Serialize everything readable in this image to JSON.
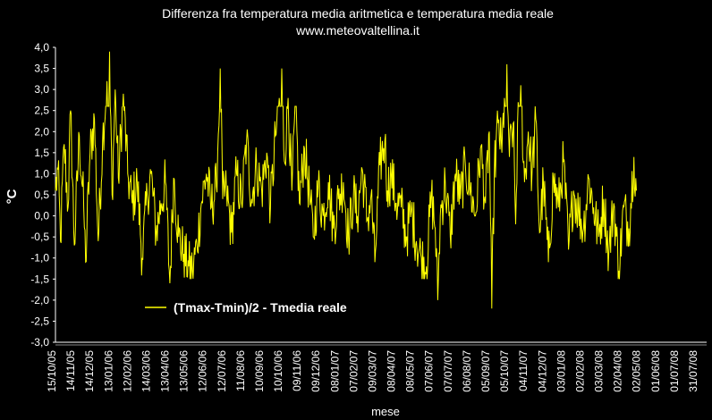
{
  "chart_data": {
    "type": "line",
    "title": "Differenza fra temperatura media aritmetica e temperatura media reale",
    "subtitle": "www.meteovaltellina.it",
    "xlabel": "mese",
    "ylabel": "°C",
    "ylim": [
      -3.0,
      4.0
    ],
    "yticks": [
      "4,0",
      "3,5",
      "3,0",
      "2,5",
      "2,0",
      "1,5",
      "1,0",
      "0,5",
      "0,0",
      "-0,5",
      "-1,0",
      "-1,5",
      "-2,0",
      "-2,5",
      "-3,0"
    ],
    "x_tick_labels": [
      "15/10/05",
      "14/11/05",
      "14/12/05",
      "13/01/06",
      "12/02/06",
      "14/03/06",
      "13/04/06",
      "13/05/06",
      "12/06/06",
      "12/07/06",
      "11/08/06",
      "10/09/06",
      "10/10/06",
      "09/11/06",
      "09/12/06",
      "08/01/07",
      "07/02/07",
      "09/03/07",
      "08/04/07",
      "08/05/07",
      "07/06/07",
      "07/07/07",
      "06/08/07",
      "05/09/07",
      "05/10/07",
      "04/11/07",
      "04/12/07",
      "03/01/08",
      "02/02/08",
      "03/03/08",
      "02/04/08",
      "02/05/08",
      "01/06/08",
      "01/07/08",
      "31/07/08"
    ],
    "grid": false,
    "legend_position": "lower-left",
    "line_color": "#ffff00",
    "series": [
      {
        "name": "(Tmax-Tmin)/2 - Tmedia reale",
        "color": "#ffff00",
        "anchors": [
          {
            "d": 0,
            "v": 0.6
          },
          {
            "d": 4,
            "v": 1.1
          },
          {
            "d": 8,
            "v": -0.6
          },
          {
            "d": 14,
            "v": 1.7
          },
          {
            "d": 20,
            "v": 0.2
          },
          {
            "d": 24,
            "v": 2.5
          },
          {
            "d": 30,
            "v": -0.7
          },
          {
            "d": 38,
            "v": 1.9
          },
          {
            "d": 45,
            "v": 0.2
          },
          {
            "d": 48,
            "v": -1.1
          },
          {
            "d": 55,
            "v": 1.5
          },
          {
            "d": 62,
            "v": 2.3
          },
          {
            "d": 68,
            "v": -0.6
          },
          {
            "d": 75,
            "v": 1.8
          },
          {
            "d": 82,
            "v": 3.2
          },
          {
            "d": 86,
            "v": 3.9
          },
          {
            "d": 90,
            "v": 0.5
          },
          {
            "d": 95,
            "v": 3.0
          },
          {
            "d": 100,
            "v": 0.9
          },
          {
            "d": 108,
            "v": 2.9
          },
          {
            "d": 115,
            "v": 1.0
          },
          {
            "d": 122,
            "v": 0.3
          },
          {
            "d": 130,
            "v": 0.8
          },
          {
            "d": 138,
            "v": -1.0
          },
          {
            "d": 146,
            "v": 0.5
          },
          {
            "d": 152,
            "v": 1.0
          },
          {
            "d": 160,
            "v": -0.4
          },
          {
            "d": 168,
            "v": 0.3
          },
          {
            "d": 175,
            "v": 0.8
          },
          {
            "d": 182,
            "v": -1.6
          },
          {
            "d": 188,
            "v": 0.9
          },
          {
            "d": 196,
            "v": -0.5
          },
          {
            "d": 204,
            "v": -0.9
          },
          {
            "d": 212,
            "v": -1.2
          },
          {
            "d": 218,
            "v": -1.3
          },
          {
            "d": 225,
            "v": -0.7
          },
          {
            "d": 232,
            "v": 0.3
          },
          {
            "d": 240,
            "v": 1.0
          },
          {
            "d": 248,
            "v": 0.2
          },
          {
            "d": 256,
            "v": 0.7
          },
          {
            "d": 262,
            "v": 3.5
          },
          {
            "d": 266,
            "v": 0.4
          },
          {
            "d": 272,
            "v": 0.6
          },
          {
            "d": 280,
            "v": -0.4
          },
          {
            "d": 288,
            "v": 1.0
          },
          {
            "d": 296,
            "v": 0.3
          },
          {
            "d": 304,
            "v": 1.8
          },
          {
            "d": 312,
            "v": 0.4
          },
          {
            "d": 320,
            "v": 1.2
          },
          {
            "d": 328,
            "v": 0.6
          },
          {
            "d": 336,
            "v": 1.5
          },
          {
            "d": 342,
            "v": 0.2
          },
          {
            "d": 350,
            "v": 1.9
          },
          {
            "d": 356,
            "v": 2.8
          },
          {
            "d": 360,
            "v": 3.5
          },
          {
            "d": 364,
            "v": 1.3
          },
          {
            "d": 370,
            "v": 2.8
          },
          {
            "d": 376,
            "v": 0.6
          },
          {
            "d": 382,
            "v": 2.6
          },
          {
            "d": 388,
            "v": 0.3
          },
          {
            "d": 396,
            "v": 1.6
          },
          {
            "d": 404,
            "v": 0.5
          },
          {
            "d": 410,
            "v": -0.5
          },
          {
            "d": 418,
            "v": 0.7
          },
          {
            "d": 426,
            "v": 0.0
          },
          {
            "d": 434,
            "v": 0.8
          },
          {
            "d": 442,
            "v": -0.3
          },
          {
            "d": 450,
            "v": 0.4
          },
          {
            "d": 458,
            "v": 0.8
          },
          {
            "d": 466,
            "v": -0.5
          },
          {
            "d": 474,
            "v": 0.5
          },
          {
            "d": 480,
            "v": 0.0
          },
          {
            "d": 488,
            "v": 1.1
          },
          {
            "d": 496,
            "v": -0.1
          },
          {
            "d": 502,
            "v": 0.5
          },
          {
            "d": 508,
            "v": -1.1
          },
          {
            "d": 516,
            "v": 1.2
          },
          {
            "d": 524,
            "v": 1.8
          },
          {
            "d": 528,
            "v": 0.6
          },
          {
            "d": 534,
            "v": 1.0
          },
          {
            "d": 542,
            "v": 0.3
          },
          {
            "d": 550,
            "v": 0.2
          },
          {
            "d": 558,
            "v": -0.5
          },
          {
            "d": 566,
            "v": 0.1
          },
          {
            "d": 574,
            "v": -0.6
          },
          {
            "d": 582,
            "v": -1.0
          },
          {
            "d": 590,
            "v": -1.2
          },
          {
            "d": 598,
            "v": 0.5
          },
          {
            "d": 604,
            "v": -0.3
          },
          {
            "d": 608,
            "v": -2.0
          },
          {
            "d": 612,
            "v": 0.0
          },
          {
            "d": 620,
            "v": 0.8
          },
          {
            "d": 628,
            "v": -0.5
          },
          {
            "d": 636,
            "v": 1.0
          },
          {
            "d": 644,
            "v": 0.4
          },
          {
            "d": 652,
            "v": 1.2
          },
          {
            "d": 660,
            "v": 0.6
          },
          {
            "d": 668,
            "v": 0.0
          },
          {
            "d": 676,
            "v": 1.6
          },
          {
            "d": 684,
            "v": 0.3
          },
          {
            "d": 690,
            "v": 2.0
          },
          {
            "d": 694,
            "v": -2.2
          },
          {
            "d": 698,
            "v": 1.0
          },
          {
            "d": 704,
            "v": 2.2
          },
          {
            "d": 710,
            "v": 1.5
          },
          {
            "d": 714,
            "v": 2.8
          },
          {
            "d": 718,
            "v": 3.6
          },
          {
            "d": 722,
            "v": 1.4
          },
          {
            "d": 728,
            "v": 2.2
          },
          {
            "d": 732,
            "v": -0.2
          },
          {
            "d": 736,
            "v": 2.7
          },
          {
            "d": 740,
            "v": 3.1
          },
          {
            "d": 746,
            "v": 0.8
          },
          {
            "d": 752,
            "v": 2.0
          },
          {
            "d": 758,
            "v": 1.0
          },
          {
            "d": 764,
            "v": 2.3
          },
          {
            "d": 770,
            "v": -0.4
          },
          {
            "d": 776,
            "v": 0.8
          },
          {
            "d": 784,
            "v": -1.1
          },
          {
            "d": 792,
            "v": 0.9
          },
          {
            "d": 800,
            "v": 0.2
          },
          {
            "d": 808,
            "v": 1.3
          },
          {
            "d": 816,
            "v": -0.8
          },
          {
            "d": 824,
            "v": 0.6
          },
          {
            "d": 832,
            "v": 0.1
          },
          {
            "d": 840,
            "v": -0.3
          },
          {
            "d": 848,
            "v": 0.9
          },
          {
            "d": 856,
            "v": 0.2
          },
          {
            "d": 864,
            "v": -0.5
          },
          {
            "d": 872,
            "v": 0.4
          },
          {
            "d": 880,
            "v": -0.9
          },
          {
            "d": 888,
            "v": 0.3
          },
          {
            "d": 896,
            "v": -1.3
          },
          {
            "d": 904,
            "v": 0.2
          },
          {
            "d": 912,
            "v": -0.3
          },
          {
            "d": 920,
            "v": 1.4
          },
          {
            "d": 924,
            "v": 0.6
          }
        ]
      }
    ]
  }
}
